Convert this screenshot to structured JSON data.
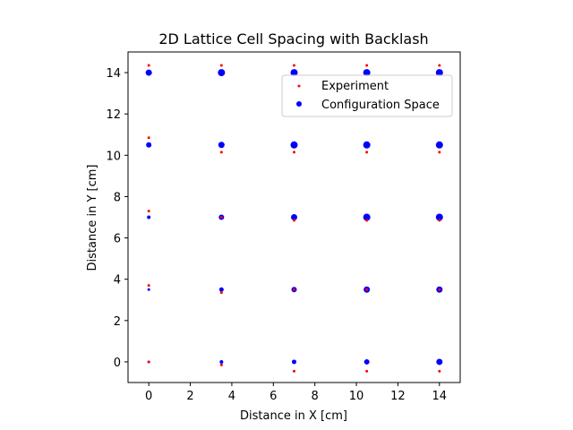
{
  "chart_data": {
    "type": "scatter",
    "title": "2D Lattice Cell Spacing with Backlash",
    "xlabel": "Distance in X [cm]",
    "ylabel": "Distance in Y [cm]",
    "xlim": [
      -1,
      15
    ],
    "ylim": [
      -1,
      15
    ],
    "xticks": [
      0,
      2,
      4,
      6,
      8,
      10,
      12,
      14
    ],
    "yticks": [
      0,
      2,
      4,
      6,
      8,
      10,
      12,
      14
    ],
    "grid": false,
    "legend_position": "upper right",
    "series": [
      {
        "name": "Experiment",
        "color": "#ff0000",
        "marker": "small-dot",
        "points": [
          {
            "x": 0,
            "y": 0
          },
          {
            "x": 0,
            "y": 3.7
          },
          {
            "x": 0,
            "y": 7.3
          },
          {
            "x": 0,
            "y": 10.85
          },
          {
            "x": 0,
            "y": 14.35
          },
          {
            "x": 3.5,
            "y": -0.15
          },
          {
            "x": 3.5,
            "y": 3.35
          },
          {
            "x": 3.5,
            "y": 7.0
          },
          {
            "x": 3.5,
            "y": 10.15
          },
          {
            "x": 3.5,
            "y": 14.35
          },
          {
            "x": 7,
            "y": -0.45
          },
          {
            "x": 7,
            "y": 3.5
          },
          {
            "x": 7,
            "y": 6.85
          },
          {
            "x": 7,
            "y": 10.15
          },
          {
            "x": 7,
            "y": 14.35
          },
          {
            "x": 10.5,
            "y": -0.45
          },
          {
            "x": 10.5,
            "y": 3.5
          },
          {
            "x": 10.5,
            "y": 6.85
          },
          {
            "x": 10.5,
            "y": 10.15
          },
          {
            "x": 10.5,
            "y": 14.35
          },
          {
            "x": 14,
            "y": -0.45
          },
          {
            "x": 14,
            "y": 3.5
          },
          {
            "x": 14,
            "y": 6.85
          },
          {
            "x": 14,
            "y": 10.15
          },
          {
            "x": 14,
            "y": 14.35
          }
        ]
      },
      {
        "name": "Configuration Space",
        "color": "#0000ff",
        "marker": "dot",
        "points": [
          {
            "x": 0,
            "y": 0,
            "s": 1.5
          },
          {
            "x": 0,
            "y": 3.5,
            "s": 1.5
          },
          {
            "x": 0,
            "y": 7,
            "s": 2
          },
          {
            "x": 0,
            "y": 10.5,
            "s": 3
          },
          {
            "x": 0,
            "y": 14,
            "s": 3.5
          },
          {
            "x": 3.5,
            "y": 0,
            "s": 2
          },
          {
            "x": 3.5,
            "y": 3.5,
            "s": 2.5
          },
          {
            "x": 3.5,
            "y": 7,
            "s": 3
          },
          {
            "x": 3.5,
            "y": 10.5,
            "s": 3.5
          },
          {
            "x": 3.5,
            "y": 14,
            "s": 4
          },
          {
            "x": 7,
            "y": 0,
            "s": 2.5
          },
          {
            "x": 7,
            "y": 3.5,
            "s": 3
          },
          {
            "x": 7,
            "y": 7,
            "s": 3.5
          },
          {
            "x": 7,
            "y": 10.5,
            "s": 4
          },
          {
            "x": 7,
            "y": 14,
            "s": 4
          },
          {
            "x": 10.5,
            "y": 0,
            "s": 3
          },
          {
            "x": 10.5,
            "y": 3.5,
            "s": 3.5
          },
          {
            "x": 10.5,
            "y": 7,
            "s": 4
          },
          {
            "x": 10.5,
            "y": 10.5,
            "s": 4
          },
          {
            "x": 10.5,
            "y": 14,
            "s": 4
          },
          {
            "x": 14,
            "y": 0,
            "s": 3.5
          },
          {
            "x": 14,
            "y": 3.5,
            "s": 3.5
          },
          {
            "x": 14,
            "y": 7,
            "s": 4
          },
          {
            "x": 14,
            "y": 10.5,
            "s": 4
          },
          {
            "x": 14,
            "y": 14,
            "s": 4
          }
        ]
      }
    ]
  }
}
